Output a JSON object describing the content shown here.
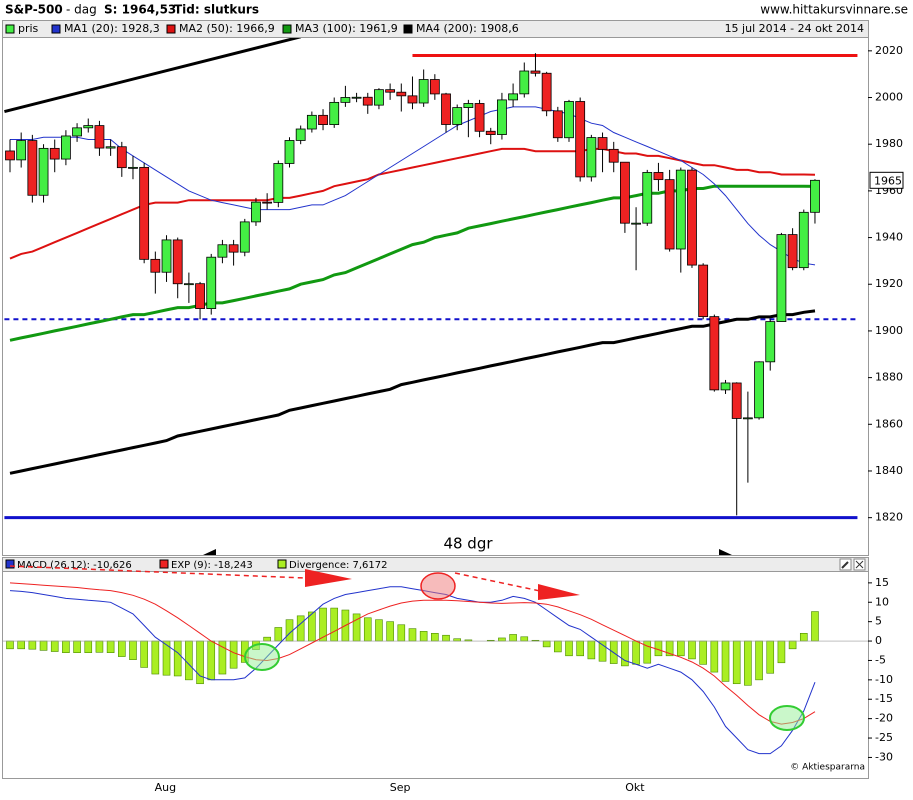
{
  "header": {
    "title": "S&P-500",
    "period": "- dag",
    "price": "S: 1964,53",
    "mode": "Tid: slutkurs",
    "site": "www.hittakursvinnare.se"
  },
  "chart_data": [
    {
      "type": "candlestick",
      "subtitle": "15 jul 2014 - 24 okt 2014",
      "annotation": "48 dgr",
      "price_marker": "1965",
      "candles": {
        "name": "pris",
        "up_color": "#44ee44",
        "down_color": "#ee2222",
        "open": [
          1977.1,
          1973.28,
          1981.57,
          1958.12,
          1978.22,
          1973.63,
          1983.53,
          1987.01,
          1987.98,
          1978.34,
          1978.91,
          1969.95,
          1970.07,
          1930.67,
          1925.15,
          1938.99,
          1920.21,
          1920.24,
          1909.57,
          1931.59,
          1936.92,
          1933.75,
          1946.72,
          1955.18,
          1955.06,
          1971.74,
          1981.6,
          1986.51,
          1992.37,
          1988.4,
          1997.92,
          2000.02,
          2000.12,
          1996.74,
          2003.37,
          2002.28,
          2000.72,
          1997.65,
          2007.71,
          2001.54,
          1988.44,
          1995.69,
          1997.45,
          1985.54,
          1984.13,
          1998.98,
          2001.57,
          2011.36,
          2010.4,
          1994.29,
          1982.77,
          1998.3,
          1965.99,
          1982.85,
          1977.8,
          1972.29,
          1946.16,
          1946.17,
          1967.9,
          1964.82,
          1935.1,
          1968.89,
          1928.21,
          1906.13,
          1874.74,
          1877.7,
          1862.49,
          1862.76,
          1886.76,
          1904.01,
          1941.28,
          1927.11,
          1950.82
        ],
        "high": [
          1982,
          1985,
          1984,
          1980,
          1982,
          1986,
          1989,
          1991,
          1990,
          1982,
          1981,
          1975,
          1972,
          1934,
          1941,
          1940,
          1925,
          1921,
          1933,
          1939,
          1939,
          1948,
          1957,
          1959,
          1973,
          1983,
          1988,
          1994,
          1995,
          2000,
          2005,
          2002,
          2002,
          2004,
          2006,
          2006,
          2009,
          2012,
          2010,
          2002,
          1997,
          1999,
          1999,
          1987,
          2002,
          2006,
          2015,
          2019,
          2011,
          1996,
          1999,
          2000,
          1984,
          1985,
          1981,
          1972,
          1953,
          1969,
          1972,
          1969,
          1970,
          1970,
          1929,
          1907,
          1879,
          1878,
          1874,
          1887,
          1905,
          1942,
          1944,
          1952,
          1965
        ],
        "low": [
          1968,
          1970,
          1955,
          1955,
          1968,
          1971,
          1981,
          1985,
          1975,
          1975,
          1966,
          1965,
          1929,
          1916,
          1921,
          1914,
          1912,
          1905,
          1907,
          1929,
          1928,
          1932,
          1945,
          1952,
          1953,
          1970,
          1980,
          1985,
          1986,
          1987,
          1996,
          1998,
          1993,
          1995,
          1999,
          1994,
          1995,
          1996,
          1999,
          1985,
          1986,
          1983,
          1983,
          1980,
          1982,
          1996,
          2000,
          2009,
          1992,
          1981,
          1981,
          1964,
          1964,
          1968,
          1968,
          1942,
          1926,
          1945,
          1960,
          1934,
          1925,
          1927,
          1905,
          1874,
          1873,
          1821,
          1835,
          1862,
          1883,
          1904,
          1926,
          1926,
          1946
        ],
        "close": [
          1973.28,
          1981.57,
          1958.12,
          1978.22,
          1973.63,
          1983.53,
          1987.01,
          1987.98,
          1978.34,
          1978.91,
          1969.95,
          1970.07,
          1930.67,
          1925.15,
          1938.99,
          1920.21,
          1920.24,
          1909.57,
          1931.59,
          1936.92,
          1933.75,
          1946.72,
          1955.18,
          1955.06,
          1971.74,
          1981.6,
          1986.51,
          1992.37,
          1988.4,
          1997.92,
          2000.02,
          2000.12,
          1996.74,
          2003.37,
          2002.28,
          2000.72,
          1997.65,
          2007.71,
          2001.54,
          1988.44,
          1995.69,
          1997.45,
          1985.54,
          1984.13,
          1998.98,
          2001.57,
          2011.36,
          2010.4,
          1994.29,
          1982.77,
          1998.3,
          1965.99,
          1982.85,
          1977.8,
          1972.29,
          1946.16,
          1946.17,
          1967.9,
          1964.82,
          1935.1,
          1968.89,
          1928.21,
          1906.13,
          1874.74,
          1877.7,
          1862.49,
          1862.76,
          1886.76,
          1904.01,
          1941.28,
          1927.11,
          1950.82,
          1964.53
        ]
      },
      "series": [
        {
          "name": "MA1 (20): 1928,3",
          "color": "#2233cc",
          "values": [
            1982,
            1982,
            1982,
            1983,
            1983,
            1983,
            1983,
            1982,
            1982,
            1982,
            1978,
            1975,
            1972,
            1969,
            1966,
            1963,
            1960,
            1958,
            1956,
            1955,
            1954,
            1953,
            1952,
            1952,
            1952,
            1952,
            1953,
            1954,
            1954,
            1956,
            1958,
            1961,
            1964,
            1967,
            1970,
            1973,
            1976,
            1979,
            1982,
            1985,
            1988,
            1990,
            1992,
            1994,
            1995,
            1996,
            1996,
            1996,
            1995,
            1994,
            1993,
            1991,
            1989,
            1988,
            1985,
            1983,
            1981,
            1979,
            1977,
            1975,
            1973,
            1970,
            1967,
            1963,
            1958,
            1952,
            1946,
            1941,
            1937,
            1934,
            1931,
            1929,
            1928.3
          ]
        },
        {
          "name": "MA2 (50): 1966,9",
          "color": "#dd1111",
          "values": [
            1931,
            1933,
            1934,
            1936,
            1938,
            1940,
            1942,
            1944,
            1946,
            1948,
            1950,
            1952,
            1954,
            1955,
            1955,
            1955,
            1956,
            1956,
            1956,
            1956,
            1956,
            1956,
            1956,
            1956,
            1957,
            1957,
            1958,
            1959,
            1960,
            1962,
            1963,
            1964,
            1965,
            1967,
            1968,
            1969,
            1970,
            1971,
            1972,
            1973,
            1974,
            1975,
            1976,
            1977,
            1978,
            1978,
            1978,
            1977,
            1977,
            1977,
            1977,
            1977,
            1978,
            1978,
            1977,
            1976,
            1976,
            1975,
            1975,
            1974,
            1973,
            1972,
            1971,
            1971,
            1970,
            1969,
            1969,
            1968,
            1968,
            1967,
            1967,
            1967,
            1966.9
          ]
        },
        {
          "name": "MA3 (100): 1961,9",
          "color": "#119911",
          "values": [
            1896,
            1897,
            1898,
            1899,
            1900,
            1901,
            1902,
            1903,
            1904,
            1905,
            1906,
            1907,
            1907,
            1908,
            1909,
            1910,
            1910,
            1911,
            1912,
            1912,
            1913,
            1914,
            1915,
            1916,
            1917,
            1918,
            1920,
            1921,
            1922,
            1924,
            1925,
            1927,
            1929,
            1931,
            1933,
            1935,
            1937,
            1938,
            1940,
            1941,
            1942,
            1944,
            1945,
            1946,
            1947,
            1948,
            1949,
            1950,
            1951,
            1952,
            1953,
            1954,
            1955,
            1956,
            1957,
            1957,
            1958,
            1959,
            1959,
            1960,
            1960,
            1961,
            1961,
            1962,
            1962,
            1962,
            1962,
            1962,
            1962,
            1962,
            1962,
            1962,
            1961.9
          ]
        },
        {
          "name": "MA4 (200): 1908,6",
          "color": "#000000",
          "values": [
            1839,
            1840,
            1841,
            1842,
            1843,
            1844,
            1845,
            1846,
            1847,
            1848,
            1849,
            1850,
            1851,
            1852,
            1853,
            1855,
            1856,
            1857,
            1858,
            1859,
            1860,
            1861,
            1862,
            1863,
            1864,
            1866,
            1867,
            1868,
            1869,
            1870,
            1871,
            1872,
            1873,
            1874,
            1875,
            1877,
            1878,
            1879,
            1880,
            1881,
            1882,
            1883,
            1884,
            1885,
            1886,
            1887,
            1888,
            1889,
            1890,
            1891,
            1892,
            1893,
            1894,
            1895,
            1895,
            1896,
            1897,
            1898,
            1899,
            1900,
            1901,
            1902,
            1902,
            1903,
            1904,
            1905,
            1905,
            1906,
            1906,
            1907,
            1907,
            1908,
            1908.6
          ]
        }
      ],
      "lines": [
        {
          "color": "#000000",
          "x": [
            -0.5,
            26
          ],
          "values": [
            1994,
            2026
          ]
        },
        {
          "color": "#ee1111",
          "x": [
            36,
            75.8
          ],
          "values": [
            2018,
            2018
          ]
        },
        {
          "color": "#1111cc",
          "x": [
            -0.5,
            75.8
          ],
          "values": [
            1905,
            1905
          ],
          "dashed": true
        },
        {
          "color": "#1111cc",
          "x": [
            -0.5,
            75.8
          ],
          "values": [
            1820,
            1820
          ]
        }
      ],
      "ylim": [
        1804,
        2025.5
      ],
      "yticks": [
        1820,
        1840,
        1860,
        1880,
        1900,
        1920,
        1940,
        1960,
        1980,
        2000,
        2020
      ]
    },
    {
      "type": "macd",
      "credit": "© Aktiespararna",
      "categories": [
        null,
        null,
        null,
        null,
        null,
        null,
        null,
        null,
        null,
        null,
        null,
        null,
        null,
        "Aug",
        null,
        null,
        null,
        null,
        null,
        null,
        null,
        null,
        null,
        null,
        null,
        null,
        null,
        null,
        null,
        null,
        null,
        null,
        null,
        null,
        "Sep",
        null,
        null,
        null,
        null,
        null,
        null,
        null,
        null,
        null,
        null,
        null,
        null,
        null,
        null,
        null,
        null,
        null,
        null,
        null,
        null,
        "Okt",
        null,
        null,
        null,
        null,
        null,
        null,
        null,
        null,
        null,
        null,
        null,
        null,
        null,
        null,
        null,
        null,
        null
      ],
      "series": [
        {
          "name": "MACD (26,12): -10,626",
          "color": "#2233cc",
          "kind": "line",
          "values": [
            13,
            12.8,
            12.5,
            12,
            11.5,
            11,
            10.8,
            10.5,
            10.3,
            10,
            8.5,
            7,
            4,
            1,
            -1,
            -3,
            -6,
            -9,
            -10,
            -10,
            -10,
            -9.5,
            -7,
            -4,
            -1,
            2,
            4.5,
            7,
            9.5,
            11,
            12,
            12.5,
            13,
            13.5,
            14,
            14,
            13.5,
            13,
            12.5,
            12,
            11,
            10.5,
            10,
            10,
            10.5,
            11.5,
            11,
            10,
            8,
            6,
            4,
            3,
            1,
            -1,
            -3,
            -5,
            -6,
            -7,
            -6,
            -7,
            -8,
            -10,
            -13,
            -17,
            -22,
            -25,
            -28,
            -29,
            -29,
            -27,
            -23,
            -18,
            -10.6
          ]
        },
        {
          "name": "EXP (9): -18,243",
          "color": "#ee2222",
          "kind": "line",
          "values": [
            15,
            14.8,
            14.6,
            14.4,
            14.2,
            14,
            13.8,
            13.5,
            13.2,
            13,
            12.5,
            11.8,
            10.8,
            9.5,
            7.8,
            6,
            4,
            2,
            0,
            -1.5,
            -3,
            -4,
            -4.8,
            -5,
            -4.5,
            -3.5,
            -2,
            -0.5,
            1,
            2.5,
            4,
            5.5,
            7,
            8,
            9,
            9.8,
            10.3,
            10.5,
            10.5,
            10.5,
            10.4,
            10.2,
            10,
            9.8,
            9.7,
            9.8,
            9.9,
            9.8,
            9.5,
            8.8,
            7.8,
            6.8,
            5.6,
            4.2,
            2.8,
            1.4,
            0,
            -1.3,
            -2.2,
            -3.2,
            -4.2,
            -5.4,
            -7,
            -9,
            -11.6,
            -14,
            -16.6,
            -19,
            -20.7,
            -21.4,
            -21,
            -20,
            -18.2
          ]
        },
        {
          "name": "Divergence: 7,6172",
          "color": "#aaee22",
          "kind": "bar",
          "values": [
            -2,
            -2,
            -2.1,
            -2.4,
            -2.7,
            -3,
            -3,
            -3,
            -2.9,
            -3,
            -4,
            -4.8,
            -6.8,
            -8.5,
            -8.8,
            -9,
            -10,
            -11,
            -10,
            -8.5,
            -7,
            -5.5,
            -2.2,
            1,
            3.5,
            5.5,
            6.5,
            7.5,
            8.5,
            8.5,
            8,
            7,
            6,
            5.5,
            5,
            4.2,
            3.2,
            2.5,
            2,
            1.5,
            0.6,
            0.3,
            0,
            0.2,
            0.8,
            1.7,
            1.1,
            0.2,
            -1.5,
            -2.8,
            -3.8,
            -3.8,
            -4.6,
            -5.2,
            -5.8,
            -6.4,
            -6,
            -5.7,
            -3.8,
            -3.8,
            -3.8,
            -4.6,
            -6,
            -8,
            -10.4,
            -11,
            -11.4,
            -10,
            -8.3,
            -5.6,
            -2,
            2,
            7.6
          ]
        }
      ],
      "ylim": [
        -35.3,
        17.8
      ],
      "yticks": [
        -30,
        -25,
        -20,
        -15,
        -10,
        -5,
        0,
        5,
        10,
        15
      ]
    }
  ]
}
